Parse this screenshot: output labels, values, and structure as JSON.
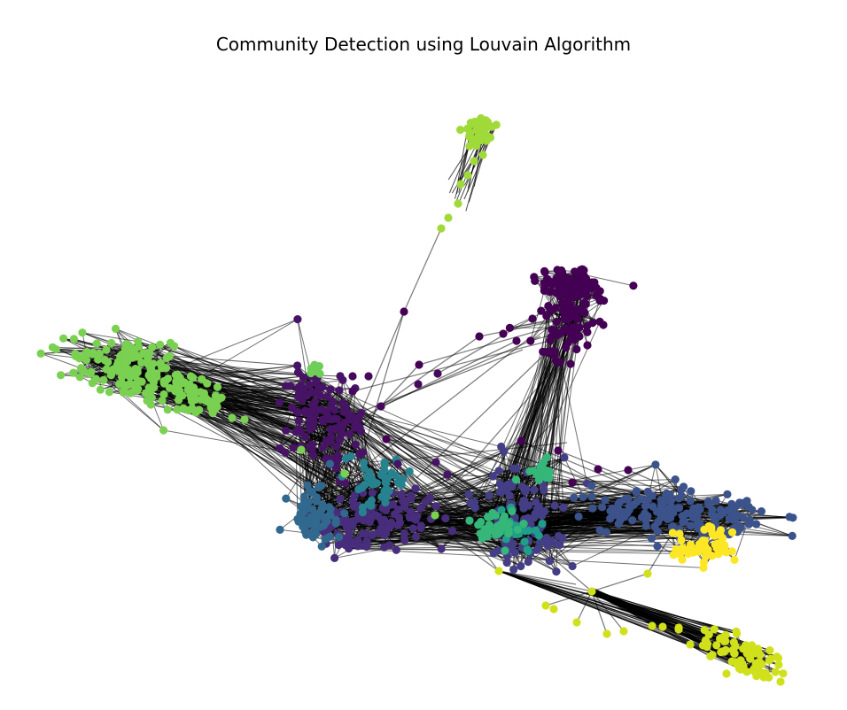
{
  "figure": {
    "title": "Community Detection using Louvain Algorithm"
  },
  "graph": {
    "layout": "force-directed network",
    "node_shape": "circle",
    "edge_color": "#000000",
    "edge_style": "semi-transparent lines",
    "axes_visible": false,
    "communities": [
      {
        "id": 0,
        "color": "#440154"
      },
      {
        "id": 1,
        "color": "#46085c"
      },
      {
        "id": 2,
        "color": "#471365"
      },
      {
        "id": 3,
        "color": "#482173"
      },
      {
        "id": 4,
        "color": "#472d7b"
      },
      {
        "id": 5,
        "color": "#433e85"
      },
      {
        "id": 6,
        "color": "#3b528b"
      },
      {
        "id": 7,
        "color": "#31688e"
      },
      {
        "id": 8,
        "color": "#26828e"
      },
      {
        "id": 9,
        "color": "#1f9e89"
      },
      {
        "id": 10,
        "color": "#35b779"
      },
      {
        "id": 11,
        "color": "#6ece58"
      },
      {
        "id": 12,
        "color": "#7ad151"
      },
      {
        "id": 13,
        "color": "#a0da39"
      },
      {
        "id": 14,
        "color": "#d0e11c"
      },
      {
        "id": 15,
        "color": "#fde725"
      }
    ]
  }
}
